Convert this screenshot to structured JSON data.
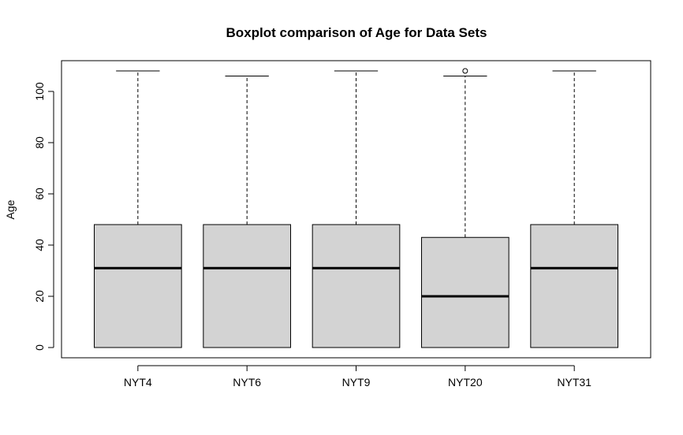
{
  "chart_data": {
    "type": "boxplot",
    "title": "Boxplot comparison of Age for Data Sets",
    "xlabel": "",
    "ylabel": "Age",
    "ylim": [
      -4,
      112
    ],
    "yticks": [
      0,
      20,
      40,
      60,
      80,
      100
    ],
    "grid": false,
    "categories": [
      "NYT4",
      "NYT6",
      "NYT9",
      "NYT20",
      "NYT31"
    ],
    "boxes": [
      {
        "min": 0,
        "q1": 0,
        "median": 31,
        "q3": 48,
        "max": 108,
        "outliers": []
      },
      {
        "min": 0,
        "q1": 0,
        "median": 31,
        "q3": 48,
        "max": 106,
        "outliers": []
      },
      {
        "min": 0,
        "q1": 0,
        "median": 31,
        "q3": 48,
        "max": 108,
        "outliers": []
      },
      {
        "min": 0,
        "q1": 0,
        "median": 20,
        "q3": 43,
        "max": 106,
        "outliers": [
          108
        ]
      },
      {
        "min": 0,
        "q1": 0,
        "median": 31,
        "q3": 48,
        "max": 108,
        "outliers": []
      }
    ],
    "colors": {
      "box_fill": "#d3d3d3",
      "stroke": "#000000"
    }
  }
}
